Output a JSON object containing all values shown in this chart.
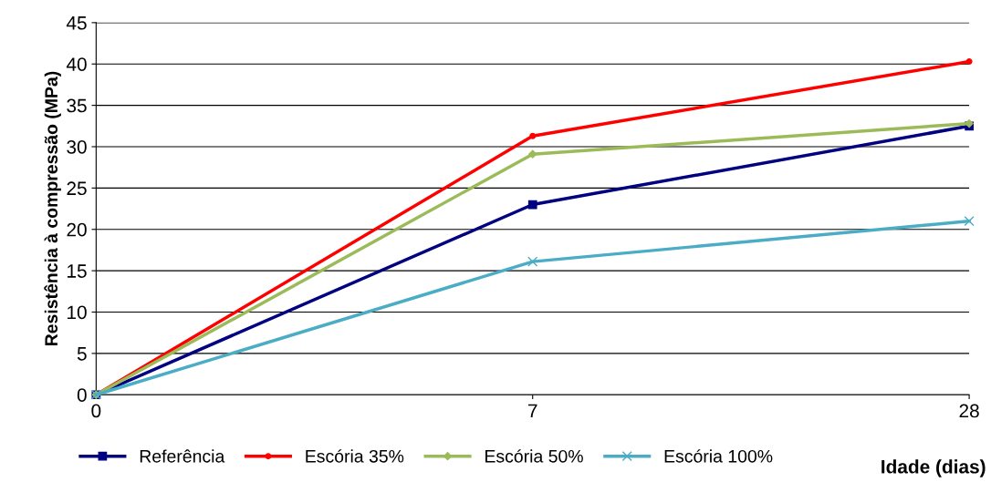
{
  "chart_data": {
    "type": "line",
    "ylabel": "Resistência à compressão (MPa)",
    "xlabel": "Idade (dias)",
    "categories": [
      "0",
      "7",
      "28"
    ],
    "series": [
      {
        "name": "Referência",
        "color": "#000080",
        "values": [
          0,
          23.0,
          32.5
        ],
        "marker": "square"
      },
      {
        "name": "Escória 35%",
        "color": "#ff0000",
        "values": [
          0,
          31.3,
          40.3
        ],
        "marker": "circle"
      },
      {
        "name": "Escória 50%",
        "color": "#9bbb59",
        "values": [
          0,
          29.1,
          32.8
        ],
        "marker": "diamond"
      },
      {
        "name": "Escória 100%",
        "color": "#4bacc6",
        "values": [
          0,
          16.1,
          21.0
        ],
        "marker": "cross"
      }
    ],
    "ylim": [
      0,
      45
    ],
    "yticks": [
      0,
      5,
      10,
      15,
      20,
      25,
      30,
      35,
      40,
      45
    ],
    "grid": "y",
    "legend": "bottom",
    "line_style": "solid"
  }
}
